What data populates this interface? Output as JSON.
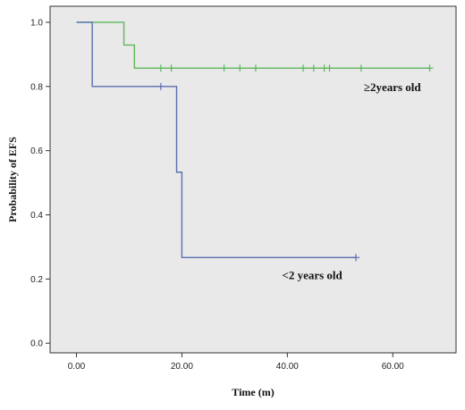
{
  "chart_data": {
    "type": "line",
    "subtype": "kaplan-meier-step",
    "xlabel": "Time (m)",
    "ylabel": "Probability of EFS",
    "xlim": [
      -5,
      72
    ],
    "ylim": [
      -0.03,
      1.05
    ],
    "xticks": [
      0,
      20,
      40,
      60
    ],
    "xtick_labels": [
      "0.00",
      "20.00",
      "40.00",
      "60.00"
    ],
    "yticks": [
      0,
      0.2,
      0.4,
      0.6,
      0.8,
      1.0
    ],
    "ytick_labels": [
      "0.0",
      "0.2",
      "0.4",
      "0.6",
      "0.8",
      "1.0"
    ],
    "grid": false,
    "background": "#e9e9e9",
    "series": [
      {
        "name": "≥2years old",
        "color": "#5cb85c",
        "steps": [
          [
            0,
            1.0
          ],
          [
            9,
            1.0
          ],
          [
            9,
            0.929
          ],
          [
            11,
            0.929
          ],
          [
            11,
            0.857
          ],
          [
            67,
            0.857
          ]
        ],
        "censored": [
          [
            16,
            0.857
          ],
          [
            18,
            0.857
          ],
          [
            28,
            0.857
          ],
          [
            31,
            0.857
          ],
          [
            34,
            0.857
          ],
          [
            43,
            0.857
          ],
          [
            45,
            0.857
          ],
          [
            47,
            0.857
          ],
          [
            48,
            0.857
          ],
          [
            54,
            0.857
          ],
          [
            67,
            0.857
          ]
        ]
      },
      {
        "name": "<2 years old",
        "color": "#5a6fb0",
        "steps": [
          [
            0,
            1.0
          ],
          [
            3,
            1.0
          ],
          [
            3,
            0.8
          ],
          [
            19,
            0.8
          ],
          [
            19,
            0.533
          ],
          [
            20,
            0.533
          ],
          [
            20,
            0.267
          ],
          [
            53,
            0.267
          ]
        ],
        "censored": [
          [
            16,
            0.8
          ],
          [
            53,
            0.267
          ]
        ]
      }
    ],
    "annotations": [
      {
        "text": "≥2years old",
        "x": 54.5,
        "y": 0.785
      },
      {
        "text": "<2 years old",
        "x": 39,
        "y": 0.2
      }
    ]
  }
}
